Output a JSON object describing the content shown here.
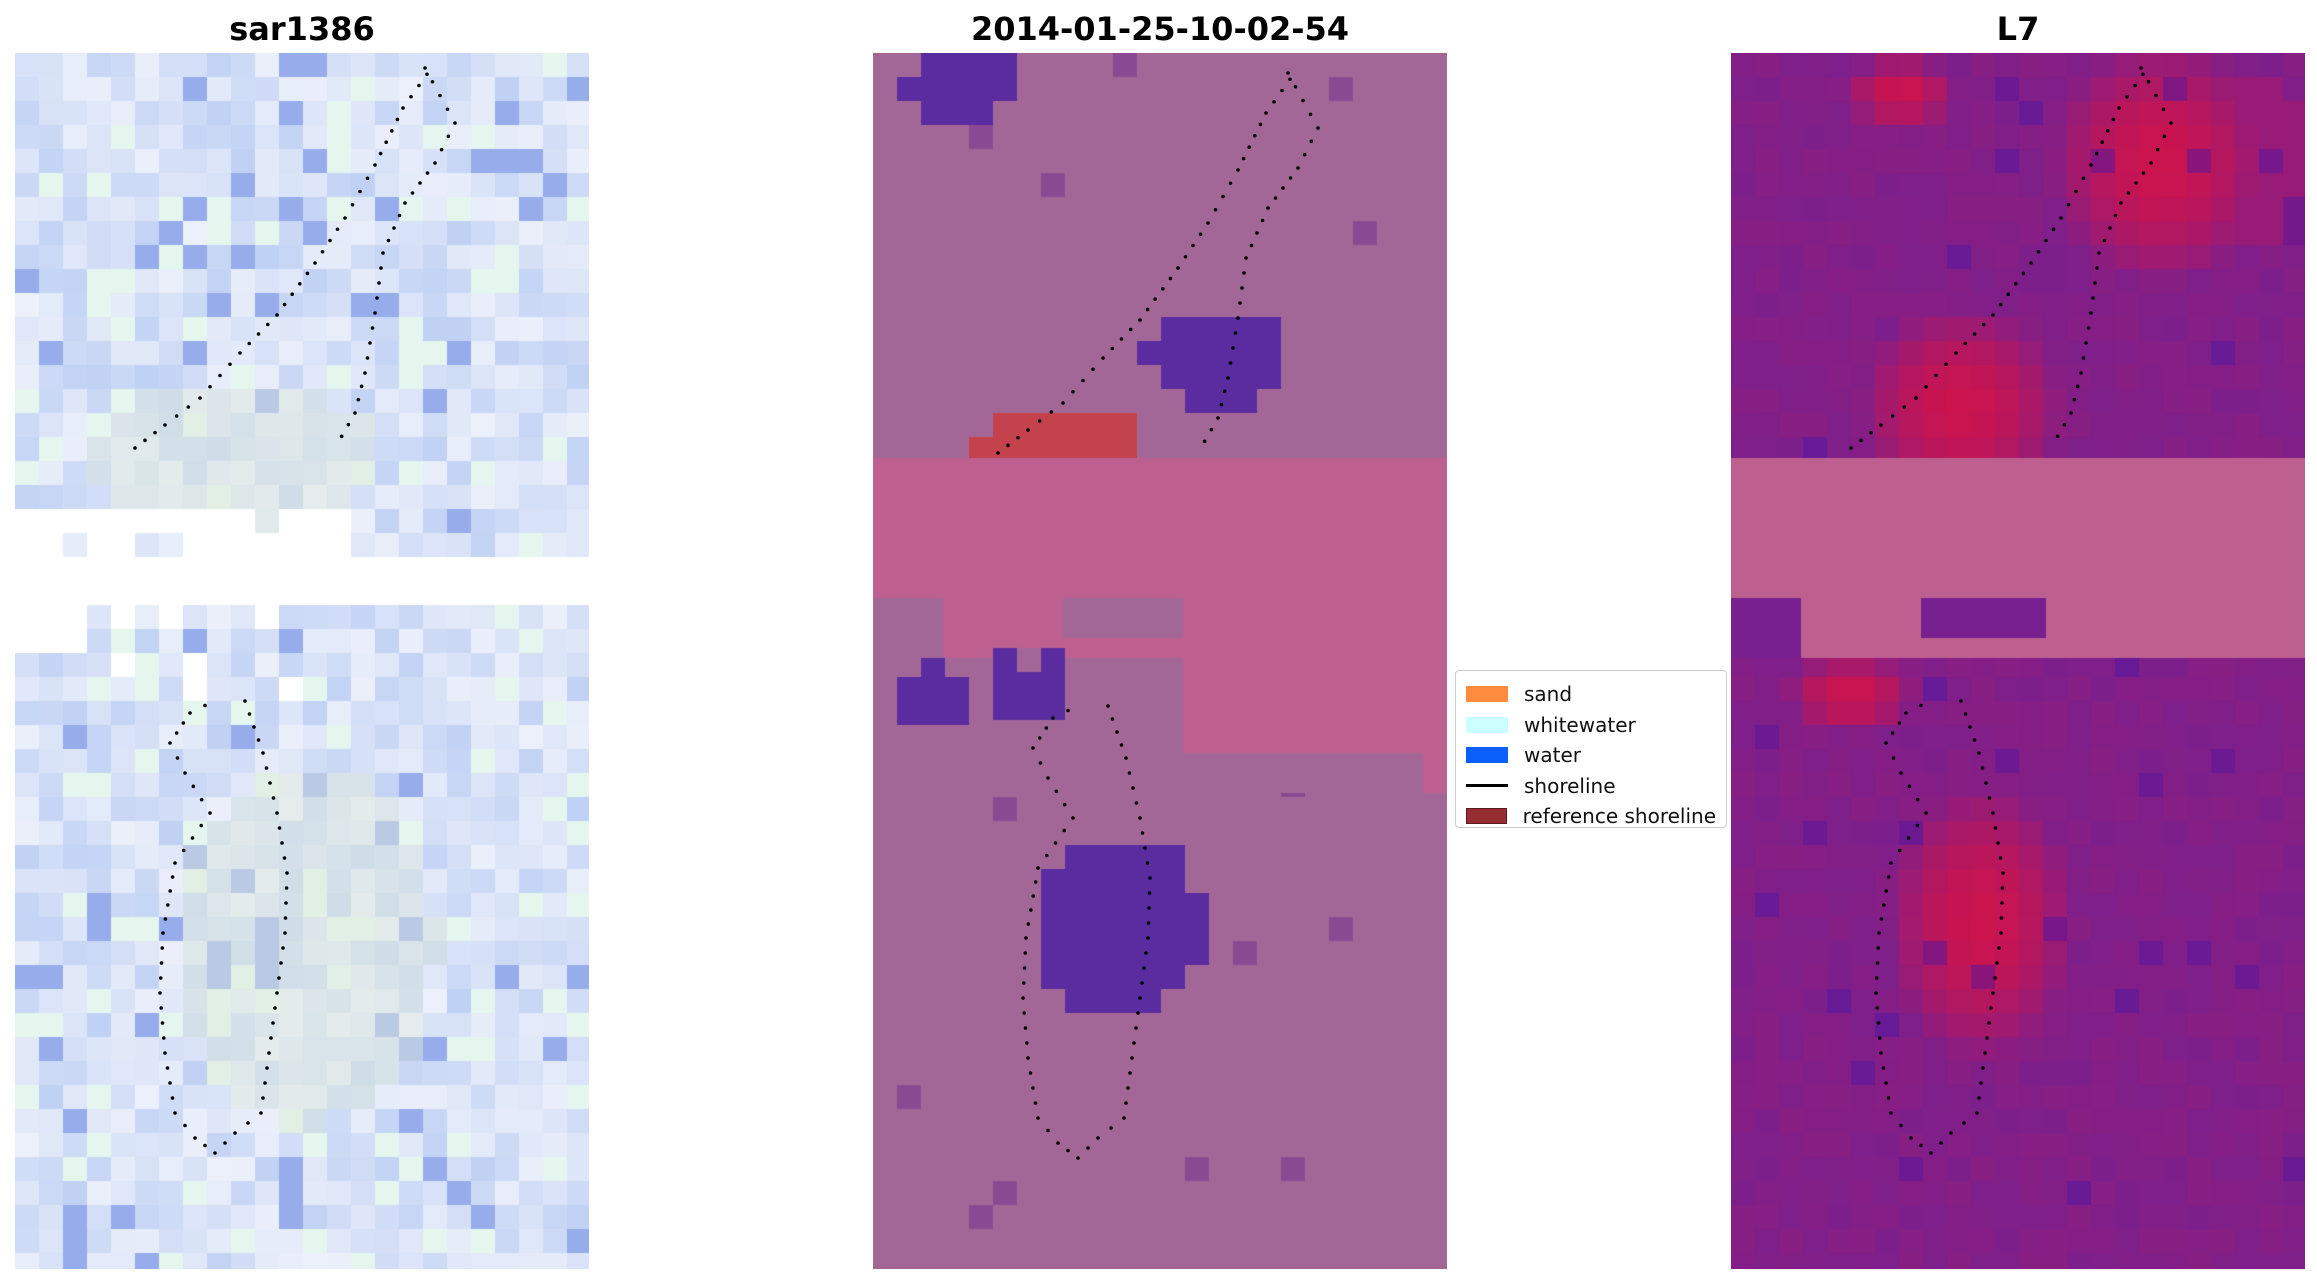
{
  "panels": [
    {
      "title": "sar1386"
    },
    {
      "title": "2014-01-25-10-02-54"
    },
    {
      "title": "L7"
    }
  ],
  "legend": {
    "items": [
      {
        "label": "sand",
        "color": "#ff8c3c",
        "kind": "patch"
      },
      {
        "label": "whitewater",
        "color": "#ccffff",
        "kind": "patch"
      },
      {
        "label": "water",
        "color": "#0a5ffa",
        "kind": "patch"
      },
      {
        "label": "shoreline",
        "color": "#000000",
        "kind": "line"
      },
      {
        "label": "reference shoreline",
        "color": "#962d32",
        "kind": "patch"
      }
    ]
  },
  "colors": {
    "classification_background": "#a36797",
    "classification_water": "#5b2c9f",
    "classification_sand": "#c4424c",
    "nodata_band": "#bd6090",
    "l7_low": "#78208f",
    "l7_high": "#d0134a",
    "sar_tint": "#cfdcf3"
  }
}
